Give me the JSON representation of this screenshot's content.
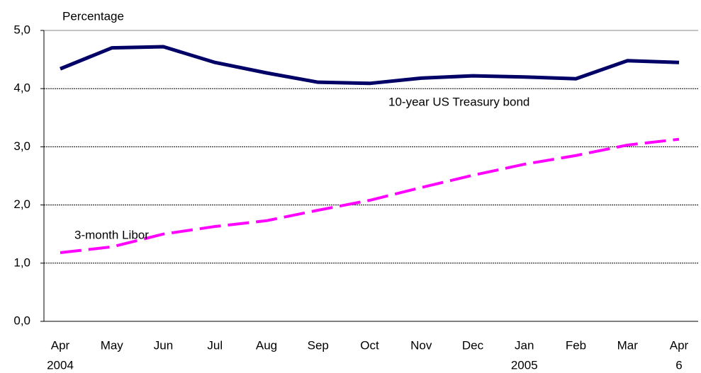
{
  "chart_data": {
    "type": "line",
    "y_label": "Percentage",
    "categories": [
      "Apr",
      "May",
      "Jun",
      "Jul",
      "Aug",
      "Sep",
      "Oct",
      "Nov",
      "Dec",
      "Jan",
      "Feb",
      "Mar",
      "Apr"
    ],
    "category_sublabels": [
      "2004",
      null,
      null,
      null,
      null,
      null,
      null,
      null,
      null,
      "2005",
      null,
      null,
      "6"
    ],
    "series": [
      {
        "name": "10-year US Treasury bond",
        "color": "#000066",
        "style": "solid",
        "values": [
          4.34,
          4.7,
          4.72,
          4.45,
          4.27,
          4.11,
          4.09,
          4.18,
          4.22,
          4.2,
          4.17,
          4.48,
          4.45
        ]
      },
      {
        "name": "3-month Libor",
        "color": "#ff00ff",
        "style": "dashed",
        "values": [
          1.18,
          1.28,
          1.5,
          1.63,
          1.73,
          1.91,
          2.08,
          2.3,
          2.51,
          2.7,
          2.85,
          3.03,
          3.13
        ]
      }
    ],
    "ylim": [
      0,
      5
    ],
    "yticks": [
      {
        "value": 0,
        "label": "0,0"
      },
      {
        "value": 1,
        "label": "1,0"
      },
      {
        "value": 2,
        "label": "2,0"
      },
      {
        "value": 3,
        "label": "3,0"
      },
      {
        "value": 4,
        "label": "4,0"
      },
      {
        "value": 5,
        "label": "5,0"
      }
    ],
    "grid": true
  }
}
